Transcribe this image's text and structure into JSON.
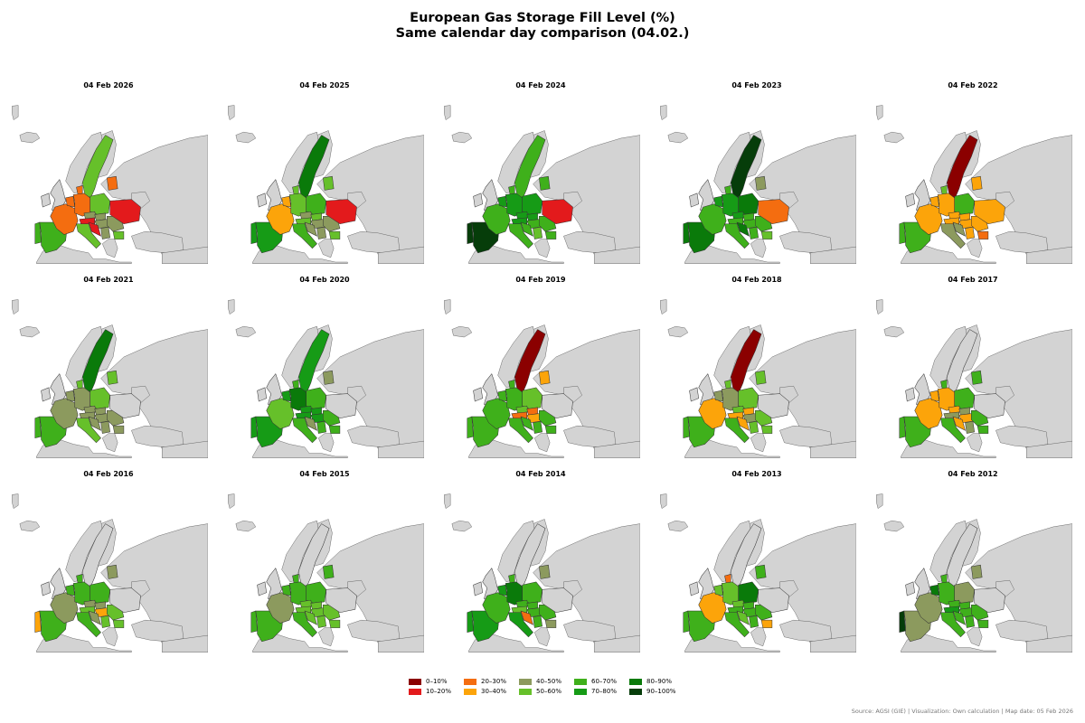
{
  "title": {
    "line1": "European Gas Storage Fill Level (%)",
    "line2": "Same calendar day comparison (04.02.)"
  },
  "colors": {
    "bin_0_10": "#8b0000",
    "bin_10_20": "#e31a1c",
    "bin_20_30": "#f46d10",
    "bin_30_40": "#fca40a",
    "bin_40_50": "#8c9a5e",
    "bin_50_60": "#66c02a",
    "bin_60_70": "#3fb01b",
    "bin_70_80": "#169b16",
    "bin_80_90": "#0a7a0a",
    "bin_90_100": "#063d0a",
    "no_data": "#d3d3d3",
    "water": "#ffffff"
  },
  "legend": {
    "items": [
      {
        "label": "0–10%",
        "color": "#8b0000"
      },
      {
        "label": "10–20%",
        "color": "#e31a1c"
      },
      {
        "label": "20–30%",
        "color": "#f46d10"
      },
      {
        "label": "30–40%",
        "color": "#fca40a"
      },
      {
        "label": "40–50%",
        "color": "#8c9a5e"
      },
      {
        "label": "50–60%",
        "color": "#66c02a"
      },
      {
        "label": "60–70%",
        "color": "#3fb01b"
      },
      {
        "label": "70–80%",
        "color": "#169b16"
      },
      {
        "label": "80–90%",
        "color": "#0a7a0a"
      },
      {
        "label": "90–100%",
        "color": "#063d0a"
      }
    ]
  },
  "source": "Source: AGSI (GIE) | Visualization: Own calculation | Map date: 05 Feb 2026",
  "panels": [
    {
      "date": "04 Feb 2026",
      "fills": {
        "iberia": "#3fb01b",
        "portugal": "#3fb01b",
        "france": "#f46d10",
        "benelux": "#f46d10",
        "germany": "#f46d10",
        "poland": "#66c02a",
        "czech": "#8c9a5e",
        "austria": "#e31a1c",
        "hungary": "#8c9a5e",
        "slovakia": "#8c9a5e",
        "italy": "#66c02a",
        "romania": "#8c9a5e",
        "bulgaria": "#66c02a",
        "sweden": "#66c02a",
        "baltic": "#f46d10",
        "ukraine": "#e31a1c",
        "denmark": "#f46d10",
        "croatia": "#e31a1c",
        "serbia": "#8c9a5e",
        "uk": "#d3d3d3"
      }
    },
    {
      "date": "04 Feb 2025",
      "fills": {
        "iberia": "#169b16",
        "portugal": "#169b16",
        "france": "#fca40a",
        "benelux": "#fca40a",
        "germany": "#66c02a",
        "poland": "#3fb01b",
        "czech": "#8c9a5e",
        "austria": "#66c02a",
        "hungary": "#8c9a5e",
        "slovakia": "#66c02a",
        "italy": "#3fb01b",
        "romania": "#8c9a5e",
        "bulgaria": "#66c02a",
        "sweden": "#0a7a0a",
        "baltic": "#66c02a",
        "ukraine": "#e31a1c",
        "denmark": "#66c02a",
        "croatia": "#8c9a5e",
        "serbia": "#8c9a5e",
        "uk": "#d3d3d3"
      }
    },
    {
      "date": "04 Feb 2024",
      "fills": {
        "iberia": "#063d0a",
        "portugal": "#063d0a",
        "france": "#3fb01b",
        "benelux": "#169b16",
        "germany": "#169b16",
        "poland": "#169b16",
        "czech": "#169b16",
        "austria": "#169b16",
        "hungary": "#3fb01b",
        "slovakia": "#169b16",
        "italy": "#3fb01b",
        "romania": "#3fb01b",
        "bulgaria": "#3fb01b",
        "sweden": "#3fb01b",
        "baltic": "#3fb01b",
        "ukraine": "#e31a1c",
        "denmark": "#3fb01b",
        "croatia": "#3fb01b",
        "serbia": "#66c02a",
        "uk": "#d3d3d3"
      }
    },
    {
      "date": "04 Feb 2023",
      "fills": {
        "iberia": "#0a7a0a",
        "portugal": "#0a7a0a",
        "france": "#3fb01b",
        "benelux": "#169b16",
        "germany": "#169b16",
        "poland": "#0a7a0a",
        "czech": "#169b16",
        "austria": "#3fb01b",
        "hungary": "#3fb01b",
        "slovakia": "#3fb01b",
        "italy": "#3fb01b",
        "romania": "#3fb01b",
        "bulgaria": "#66c02a",
        "sweden": "#063d0a",
        "baltic": "#8c9a5e",
        "ukraine": "#f46d10",
        "denmark": "#3fb01b",
        "croatia": "#0a7a0a",
        "serbia": "#3fb01b",
        "uk": "#d3d3d3"
      }
    },
    {
      "date": "04 Feb 2022",
      "fills": {
        "iberia": "#3fb01b",
        "portugal": "#3fb01b",
        "france": "#fca40a",
        "benelux": "#fca40a",
        "germany": "#fca40a",
        "poland": "#3fb01b",
        "czech": "#fca40a",
        "austria": "#fca40a",
        "hungary": "#fca40a",
        "slovakia": "#fca40a",
        "italy": "#8c9a5e",
        "romania": "#fca40a",
        "bulgaria": "#f46d10",
        "sweden": "#8b0000",
        "baltic": "#fca40a",
        "ukraine": "#fca40a",
        "denmark": "#66c02a",
        "croatia": "#8c9a5e",
        "serbia": "#fca40a",
        "uk": "#d3d3d3"
      }
    },
    {
      "date": "04 Feb 2021",
      "fills": {
        "iberia": "#3fb01b",
        "portugal": "#3fb01b",
        "france": "#8c9a5e",
        "benelux": "#8c9a5e",
        "germany": "#8c9a5e",
        "poland": "#66c02a",
        "czech": "#8c9a5e",
        "austria": "#8c9a5e",
        "hungary": "#8c9a5e",
        "slovakia": "#8c9a5e",
        "italy": "#66c02a",
        "romania": "#8c9a5e",
        "bulgaria": "#8c9a5e",
        "sweden": "#0a7a0a",
        "baltic": "#66c02a",
        "ukraine": "#d3d3d3",
        "denmark": "#66c02a",
        "croatia": "#8c9a5e",
        "serbia": "#8c9a5e",
        "uk": "#d3d3d3"
      }
    },
    {
      "date": "04 Feb 2020",
      "fills": {
        "iberia": "#169b16",
        "portugal": "#169b16",
        "france": "#66c02a",
        "benelux": "#169b16",
        "germany": "#0a7a0a",
        "poland": "#3fb01b",
        "czech": "#169b16",
        "austria": "#169b16",
        "hungary": "#169b16",
        "slovakia": "#169b16",
        "italy": "#3fb01b",
        "romania": "#3fb01b",
        "bulgaria": "#3fb01b",
        "sweden": "#169b16",
        "baltic": "#8c9a5e",
        "ukraine": "#d3d3d3",
        "denmark": "#3fb01b",
        "croatia": "#8c9a5e",
        "serbia": "#3fb01b",
        "uk": "#d3d3d3"
      }
    },
    {
      "date": "04 Feb 2019",
      "fills": {
        "iberia": "#3fb01b",
        "portugal": "#3fb01b",
        "france": "#3fb01b",
        "benelux": "#3fb01b",
        "germany": "#3fb01b",
        "poland": "#66c02a",
        "czech": "#66c02a",
        "austria": "#f46d10",
        "hungary": "#fca40a",
        "slovakia": "#f46d10",
        "italy": "#3fb01b",
        "romania": "#3fb01b",
        "bulgaria": "#3fb01b",
        "sweden": "#8b0000",
        "baltic": "#fca40a",
        "ukraine": "#d3d3d3",
        "denmark": "#3fb01b",
        "croatia": "#3fb01b",
        "serbia": "#3fb01b",
        "uk": "#d3d3d3"
      }
    },
    {
      "date": "04 Feb 2018",
      "fills": {
        "iberia": "#3fb01b",
        "portugal": "#3fb01b",
        "france": "#fca40a",
        "benelux": "#8c9a5e",
        "germany": "#8c9a5e",
        "poland": "#66c02a",
        "czech": "#66c02a",
        "austria": "#fca40a",
        "hungary": "#8c9a5e",
        "slovakia": "#fca40a",
        "italy": "#3fb01b",
        "romania": "#66c02a",
        "bulgaria": "#66c02a",
        "sweden": "#8b0000",
        "baltic": "#66c02a",
        "ukraine": "#d3d3d3",
        "denmark": "#66c02a",
        "croatia": "#fca40a",
        "serbia": "#66c02a",
        "uk": "#d3d3d3"
      }
    },
    {
      "date": "04 Feb 2017",
      "fills": {
        "iberia": "#3fb01b",
        "portugal": "#3fb01b",
        "france": "#fca40a",
        "benelux": "#fca40a",
        "germany": "#fca40a",
        "poland": "#3fb01b",
        "czech": "#fca40a",
        "austria": "#8c9a5e",
        "hungary": "#fca40a",
        "slovakia": "#8c9a5e",
        "italy": "#3fb01b",
        "romania": "#3fb01b",
        "bulgaria": "#3fb01b",
        "sweden": "#d3d3d3",
        "baltic": "#3fb01b",
        "ukraine": "#d3d3d3",
        "denmark": "#3fb01b",
        "croatia": "#fca40a",
        "serbia": "#8c9a5e",
        "uk": "#d3d3d3"
      }
    },
    {
      "date": "04 Feb 2016",
      "fills": {
        "iberia": "#3fb01b",
        "portugal": "#fca40a",
        "france": "#8c9a5e",
        "benelux": "#3fb01b",
        "germany": "#3fb01b",
        "poland": "#3fb01b",
        "czech": "#8c9a5e",
        "austria": "#66c02a",
        "hungary": "#fca40a",
        "slovakia": "#8c9a5e",
        "italy": "#3fb01b",
        "romania": "#66c02a",
        "bulgaria": "#66c02a",
        "sweden": "#d3d3d3",
        "baltic": "#8c9a5e",
        "ukraine": "#d3d3d3",
        "denmark": "#3fb01b",
        "croatia": "#8c9a5e",
        "serbia": "#66c02a",
        "uk": "#d3d3d3"
      }
    },
    {
      "date": "04 Feb 2015",
      "fills": {
        "iberia": "#3fb01b",
        "portugal": "#3fb01b",
        "france": "#8c9a5e",
        "benelux": "#3fb01b",
        "germany": "#3fb01b",
        "poland": "#3fb01b",
        "czech": "#66c02a",
        "austria": "#66c02a",
        "hungary": "#66c02a",
        "slovakia": "#66c02a",
        "italy": "#3fb01b",
        "romania": "#66c02a",
        "bulgaria": "#66c02a",
        "sweden": "#d3d3d3",
        "baltic": "#3fb01b",
        "ukraine": "#d3d3d3",
        "denmark": "#3fb01b",
        "croatia": "#66c02a",
        "serbia": "#66c02a",
        "uk": "#d3d3d3"
      }
    },
    {
      "date": "04 Feb 2014",
      "fills": {
        "iberia": "#169b16",
        "portugal": "#169b16",
        "france": "#3fb01b",
        "benelux": "#169b16",
        "germany": "#0a7a0a",
        "poland": "#3fb01b",
        "czech": "#3fb01b",
        "austria": "#66c02a",
        "hungary": "#3fb01b",
        "slovakia": "#3fb01b",
        "italy": "#169b16",
        "romania": "#3fb01b",
        "bulgaria": "#8c9a5e",
        "sweden": "#d3d3d3",
        "baltic": "#8c9a5e",
        "ukraine": "#d3d3d3",
        "denmark": "#3fb01b",
        "croatia": "#f46d10",
        "serbia": "#3fb01b",
        "uk": "#d3d3d3"
      }
    },
    {
      "date": "04 Feb 2013",
      "fills": {
        "iberia": "#3fb01b",
        "portugal": "#3fb01b",
        "france": "#fca40a",
        "benelux": "#66c02a",
        "germany": "#66c02a",
        "poland": "#0a7a0a",
        "czech": "#66c02a",
        "austria": "#3fb01b",
        "hungary": "#3fb01b",
        "slovakia": "#3fb01b",
        "italy": "#3fb01b",
        "romania": "#3fb01b",
        "bulgaria": "#fca40a",
        "sweden": "#d3d3d3",
        "baltic": "#3fb01b",
        "ukraine": "#d3d3d3",
        "denmark": "#f46d10",
        "croatia": "#66c02a",
        "serbia": "#3fb01b",
        "uk": "#d3d3d3"
      }
    },
    {
      "date": "04 Feb 2012",
      "fills": {
        "iberia": "#8c9a5e",
        "portugal": "#063d0a",
        "france": "#8c9a5e",
        "benelux": "#0a7a0a",
        "germany": "#3fb01b",
        "poland": "#8c9a5e",
        "czech": "#3fb01b",
        "austria": "#169b16",
        "hungary": "#3fb01b",
        "slovakia": "#3fb01b",
        "italy": "#3fb01b",
        "romania": "#3fb01b",
        "bulgaria": "#3fb01b",
        "sweden": "#d3d3d3",
        "baltic": "#8c9a5e",
        "ukraine": "#d3d3d3",
        "denmark": "#3fb01b",
        "croatia": "#3fb01b",
        "serbia": "#3fb01b",
        "uk": "#d3d3d3"
      }
    }
  ]
}
